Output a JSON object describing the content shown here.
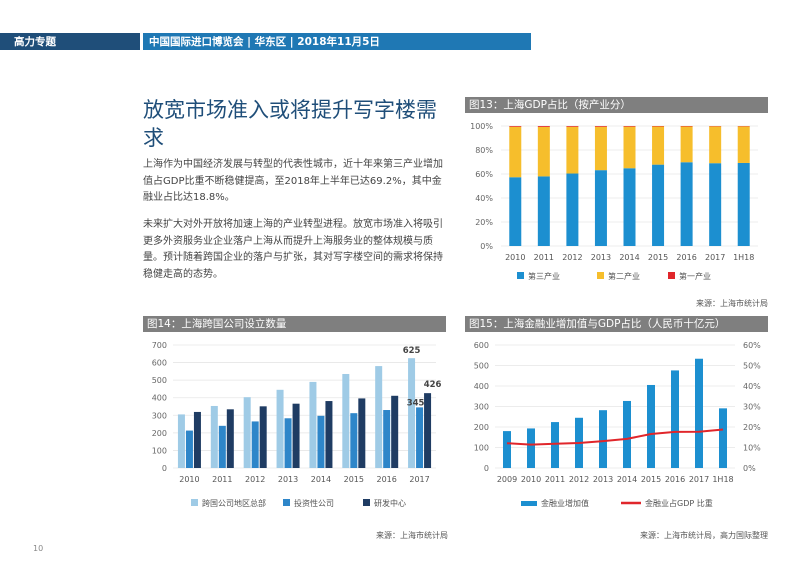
{
  "header": {
    "left": "高力专题",
    "right": "中国国际进口博览会 | 华东区 | 2018年11月5日"
  },
  "article": {
    "title": "放宽市场准入或将提升写字楼需求",
    "para1": "上海作为中国经济发展与转型的代表性城市，近十年来第三产业增加值占GDP比重不断稳健提高，至2018年上半年已达69.2%，其中金融业占比达18.8%。",
    "para2": "未来扩大对外开放将加速上海的产业转型进程。放宽市场准入将吸引更多外资服务业企业落户上海从而提升上海服务业的整体规模与质量。预计随着跨国企业的落户与扩张，其对写字楼空间的需求将保持稳健走高的态势。"
  },
  "page_number": "10",
  "colors": {
    "navy": "#1f4e79",
    "blue": "#1f78b4",
    "chart_blue": "#1c8fd0",
    "light_blue": "#9fcbe6",
    "mid_blue": "#2e86c9",
    "dark_navy": "#1f3c63",
    "yellow": "#f6be2c",
    "red": "#e0262b",
    "gray_bar": "#7f7f7f"
  },
  "chart_data": [
    {
      "id": "fig13",
      "type": "bar",
      "stacked": true,
      "title": "图13：上海GDP占比（按产业分）",
      "categories": [
        "2010",
        "2011",
        "2012",
        "2013",
        "2014",
        "2015",
        "2016",
        "2017",
        "1H18"
      ],
      "series": [
        {
          "name": "第三产业",
          "color": "#1c8fd0",
          "values": [
            57.3,
            58.0,
            60.4,
            63.2,
            64.8,
            67.8,
            69.8,
            69.0,
            69.2
          ]
        },
        {
          "name": "第二产业",
          "color": "#f6be2c",
          "values": [
            42.1,
            41.3,
            39.0,
            36.2,
            34.7,
            31.8,
            29.8,
            30.7,
            30.5
          ]
        },
        {
          "name": "第一产业",
          "color": "#e0262b",
          "values": [
            0.6,
            0.7,
            0.6,
            0.6,
            0.5,
            0.4,
            0.4,
            0.3,
            0.3
          ]
        }
      ],
      "y_ticks": [
        "0%",
        "20%",
        "40%",
        "60%",
        "80%",
        "100%"
      ],
      "ylim": [
        0,
        100
      ],
      "grid": true,
      "legend": "bottom",
      "source": "来源：上海市统计局"
    },
    {
      "id": "fig14",
      "type": "bar",
      "title": "图14：上海跨国公司设立数量",
      "categories": [
        "2010",
        "2011",
        "2012",
        "2013",
        "2014",
        "2015",
        "2016",
        "2017"
      ],
      "series": [
        {
          "name": "跨国公司地区总部",
          "color": "#9fcbe6",
          "values": [
            305,
            353,
            403,
            445,
            490,
            535,
            580,
            625
          ]
        },
        {
          "name": "投资性公司",
          "color": "#2e86c9",
          "values": [
            213,
            240,
            265,
            283,
            297,
            312,
            330,
            345
          ]
        },
        {
          "name": "研发中心",
          "color": "#1f3c63",
          "values": [
            319,
            334,
            351,
            366,
            381,
            396,
            411,
            426
          ]
        }
      ],
      "data_labels": [
        "625",
        "426",
        "345"
      ],
      "y_ticks": [
        "0",
        "100",
        "200",
        "300",
        "400",
        "500",
        "600",
        "700"
      ],
      "ylim": [
        0,
        700
      ],
      "grid": true,
      "legend": "bottom",
      "source": "来源：上海市统计局"
    },
    {
      "id": "fig15",
      "type": "bar",
      "title": "图15：上海金融业增加值与GDP占比（人民币十亿元）",
      "categories": [
        "2009",
        "2010",
        "2011",
        "2012",
        "2013",
        "2014",
        "2015",
        "2016",
        "2017",
        "1H18"
      ],
      "series": [
        {
          "name": "金融业增加值",
          "type": "bar",
          "axis": "left",
          "color": "#1c8fd0",
          "values": [
            180,
            193,
            224,
            245,
            282,
            327,
            405,
            476,
            533,
            291
          ]
        },
        {
          "name": "金融业占GDP 比重",
          "type": "line",
          "axis": "right",
          "color": "#e0262b",
          "values": [
            12.1,
            11.4,
            11.8,
            12.2,
            13.1,
            14.2,
            16.6,
            17.6,
            17.7,
            18.8
          ]
        }
      ],
      "y_ticks_left": [
        "0",
        "100",
        "200",
        "300",
        "400",
        "500",
        "600"
      ],
      "y_ticks_right": [
        "0%",
        "10%",
        "20%",
        "30%",
        "40%",
        "50%",
        "60%"
      ],
      "ylim_left": [
        0,
        600
      ],
      "ylim_right": [
        0,
        60
      ],
      "grid": true,
      "legend": "bottom",
      "source": "来源：上海市统计局，高力国际整理"
    }
  ]
}
